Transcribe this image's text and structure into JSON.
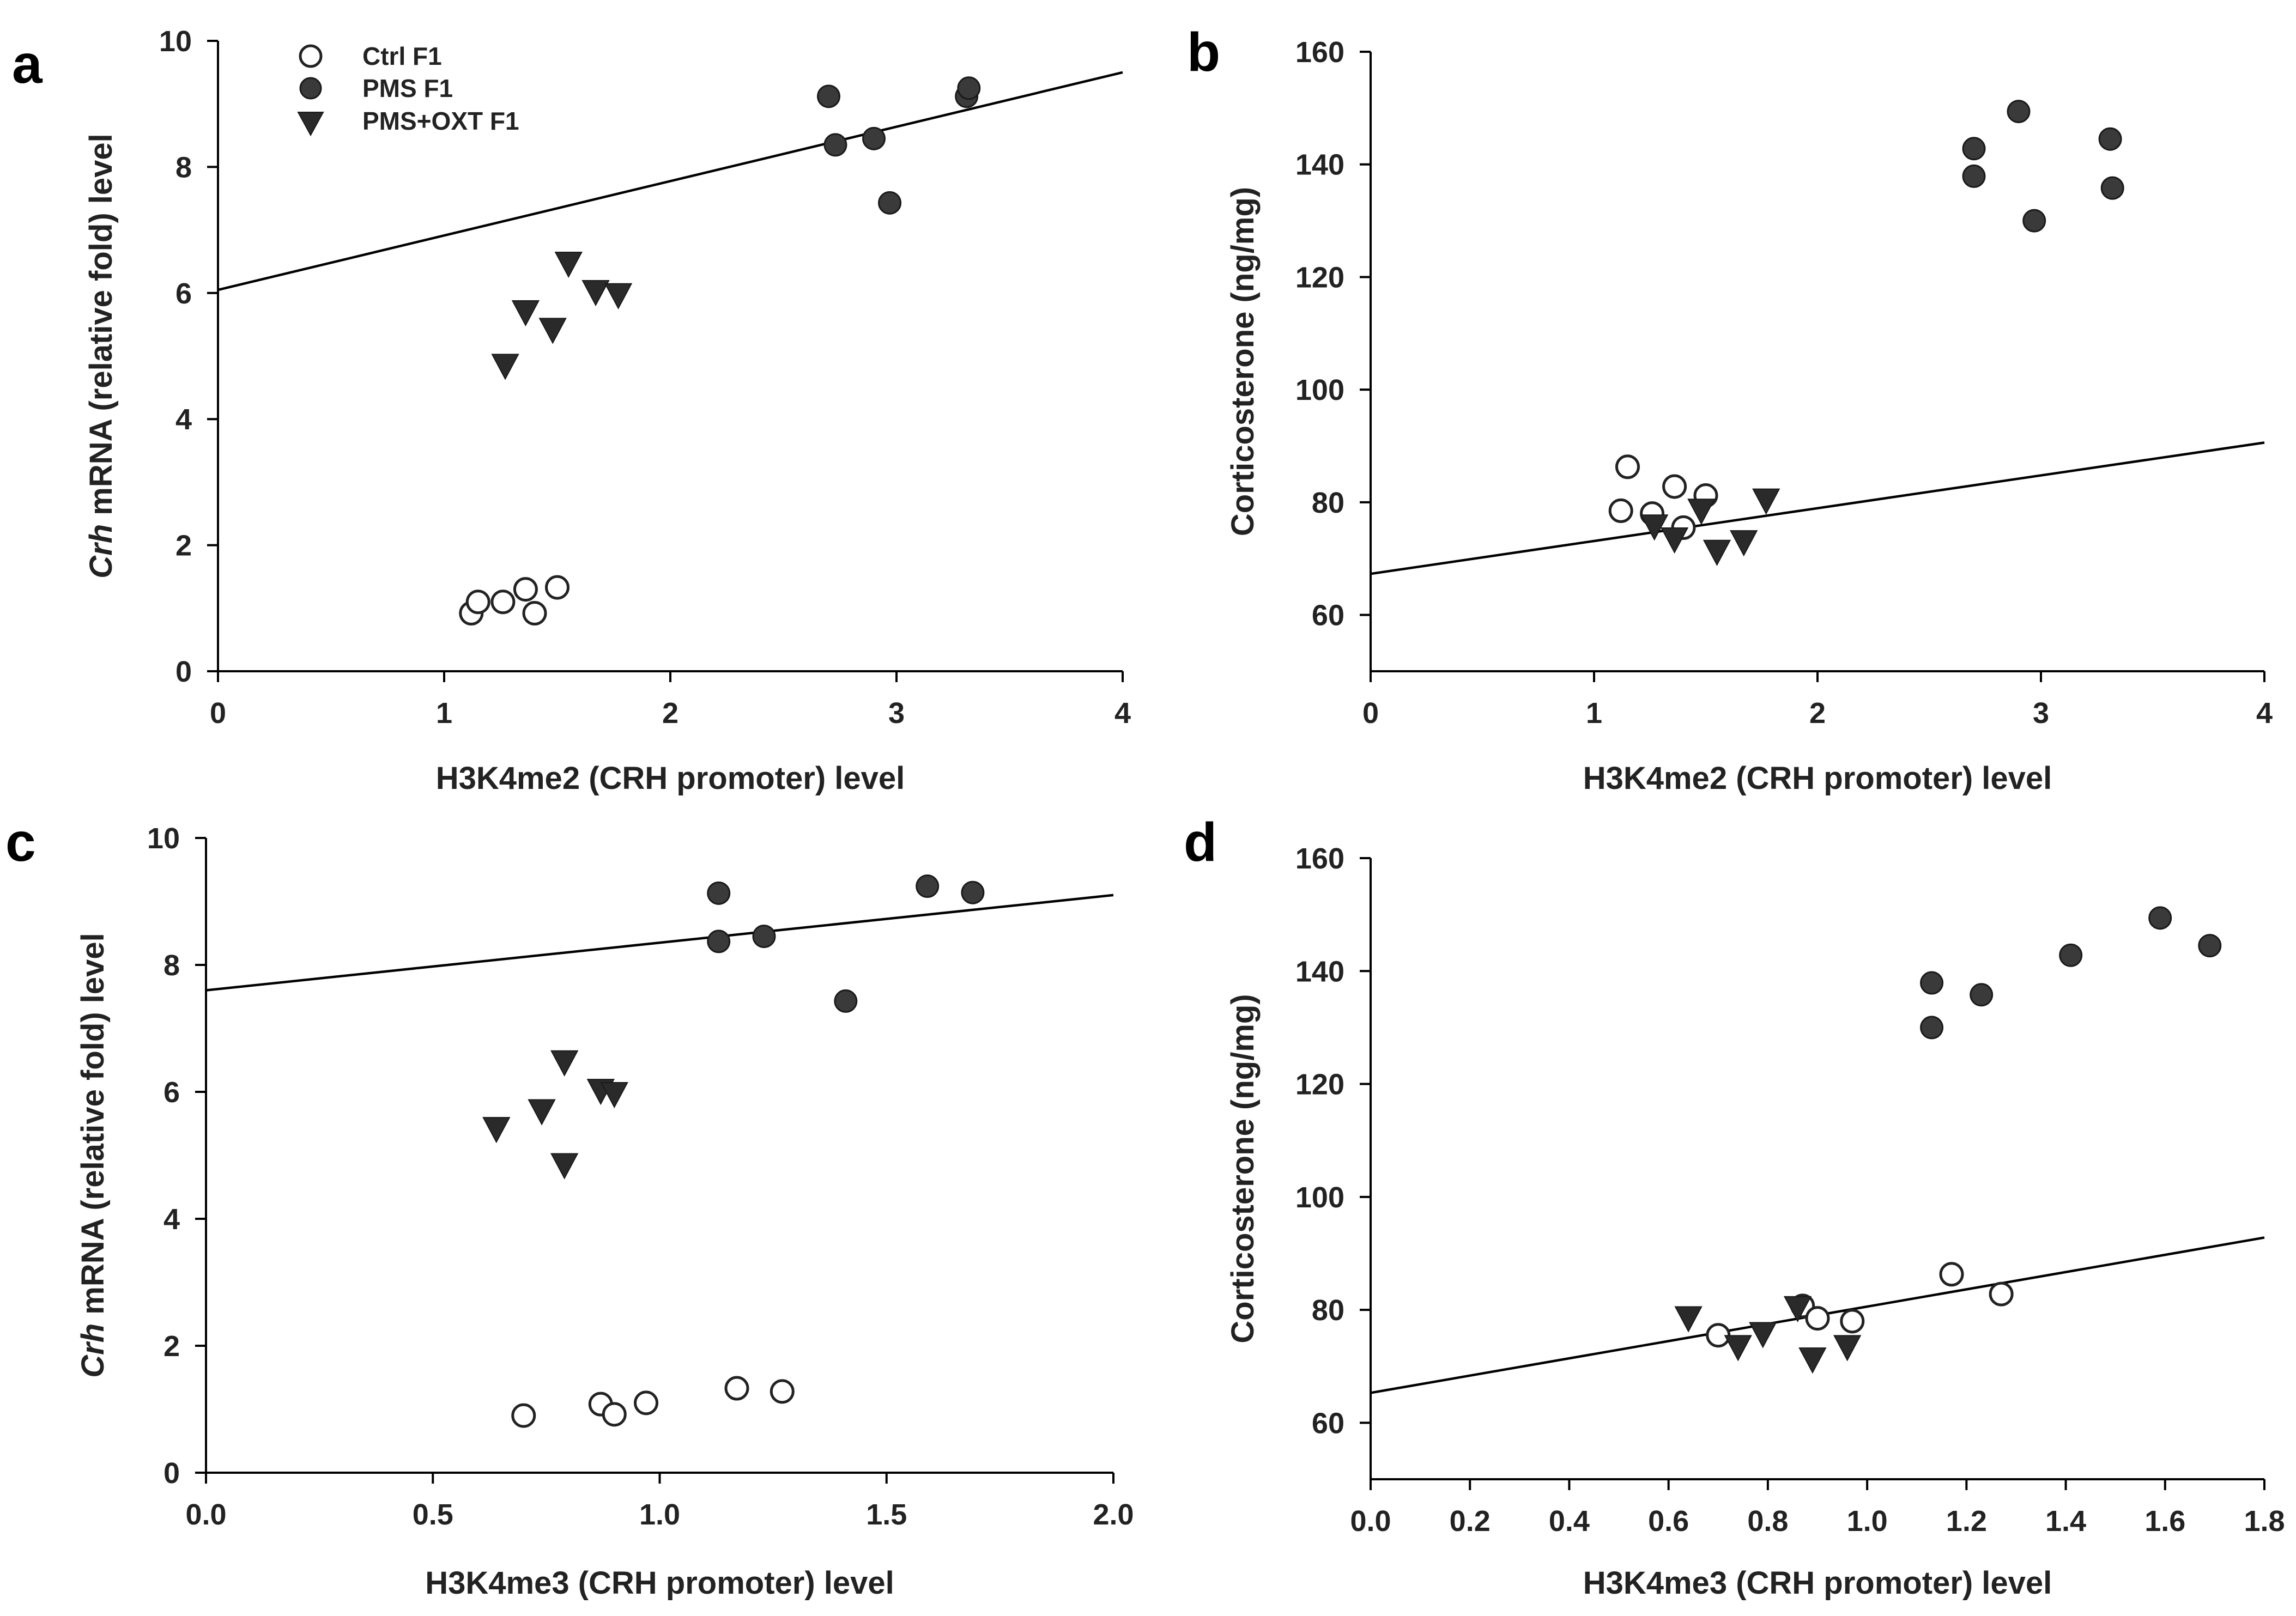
{
  "legend": {
    "ctrl": "Ctrl F1",
    "pms": "PMS F1",
    "oxt": "PMS+OXT F1"
  },
  "chart_data": [
    {
      "panel": "a",
      "type": "scatter",
      "xlabel": "H3K4me2 (CRH promoter) level",
      "ylabel_italic": "Crh",
      "ylabel_rest": " mRNA (relative fold) level",
      "xlim": [
        0,
        4
      ],
      "ylim": [
        0,
        10
      ],
      "xticks": [
        "0",
        "1",
        "2",
        "3",
        "4"
      ],
      "xtick_values": [
        0,
        1,
        2,
        3,
        4
      ],
      "yticks": [
        "0",
        "2",
        "4",
        "6",
        "8",
        "10"
      ],
      "ytick_values": [
        0,
        2,
        4,
        6,
        8,
        10
      ],
      "regression": {
        "x0": 0,
        "y0": 6.05,
        "x1": 4,
        "y1": 9.5
      },
      "series": [
        {
          "name": "Ctrl F1",
          "marker": "open-circle",
          "points": [
            [
              1.12,
              0.92
            ],
            [
              1.15,
              1.1
            ],
            [
              1.26,
              1.1
            ],
            [
              1.36,
              1.3
            ],
            [
              1.4,
              0.92
            ],
            [
              1.5,
              1.33
            ]
          ]
        },
        {
          "name": "PMS F1",
          "marker": "filled-circle",
          "points": [
            [
              2.7,
              9.12
            ],
            [
              2.73,
              8.35
            ],
            [
              2.9,
              8.45
            ],
            [
              2.97,
              7.43
            ],
            [
              3.31,
              9.12
            ],
            [
              3.32,
              9.25
            ]
          ]
        },
        {
          "name": "PMS+OXT F1",
          "marker": "triangle-down",
          "points": [
            [
              1.27,
              4.88
            ],
            [
              1.36,
              5.73
            ],
            [
              1.48,
              5.45
            ],
            [
              1.55,
              6.5
            ],
            [
              1.67,
              6.05
            ],
            [
              1.77,
              6.0
            ]
          ]
        }
      ]
    },
    {
      "panel": "b",
      "type": "scatter",
      "xlabel": "H3K4me2 (CRH promoter) level",
      "ylabel_italic": "",
      "ylabel_rest": "Corticosterone (ng/mg)",
      "xlim": [
        0,
        4
      ],
      "ylim": [
        50,
        160
      ],
      "xticks": [
        "0",
        "1",
        "2",
        "3",
        "4"
      ],
      "xtick_values": [
        0,
        1,
        2,
        3,
        4
      ],
      "yticks": [
        "60",
        "80",
        "100",
        "120",
        "140",
        "160"
      ],
      "ytick_values": [
        60,
        80,
        100,
        120,
        140,
        160
      ],
      "regression": {
        "x0": 0,
        "y0": 67.3,
        "x1": 4,
        "y1": 90.6
      },
      "series": [
        {
          "name": "Ctrl F1",
          "marker": "open-circle",
          "points": [
            [
              1.12,
              78.5
            ],
            [
              1.15,
              86.3
            ],
            [
              1.26,
              78.0
            ],
            [
              1.36,
              82.8
            ],
            [
              1.4,
              75.5
            ],
            [
              1.5,
              81.2
            ]
          ]
        },
        {
          "name": "PMS F1",
          "marker": "filled-circle",
          "points": [
            [
              2.7,
              142.8
            ],
            [
              2.7,
              137.9
            ],
            [
              2.9,
              149.4
            ],
            [
              2.97,
              130.0
            ],
            [
              3.31,
              144.5
            ],
            [
              3.32,
              135.8
            ]
          ]
        },
        {
          "name": "PMS+OXT F1",
          "marker": "triangle-down",
          "points": [
            [
              1.27,
              76.1
            ],
            [
              1.36,
              73.8
            ],
            [
              1.48,
              78.9
            ],
            [
              1.55,
              71.6
            ],
            [
              1.67,
              73.3
            ],
            [
              1.77,
              80.7
            ]
          ]
        }
      ]
    },
    {
      "panel": "c",
      "type": "scatter",
      "xlabel": "H3K4me3 (CRH promoter) level",
      "ylabel_italic": "Crh",
      "ylabel_rest": " mRNA (relative fold) level",
      "xlim": [
        0,
        2
      ],
      "ylim": [
        0,
        10
      ],
      "xticks": [
        "0.0",
        "0.5",
        "1.0",
        "1.5",
        "2.0"
      ],
      "xtick_values": [
        0,
        0.5,
        1,
        1.5,
        2
      ],
      "yticks": [
        "0",
        "2",
        "4",
        "6",
        "8",
        "10"
      ],
      "ytick_values": [
        0,
        2,
        4,
        6,
        8,
        10
      ],
      "regression": {
        "x0": 0,
        "y0": 7.6,
        "x1": 2,
        "y1": 9.1
      },
      "series": [
        {
          "name": "Ctrl F1",
          "marker": "open-circle",
          "points": [
            [
              0.7,
              0.9
            ],
            [
              0.87,
              1.08
            ],
            [
              0.9,
              0.92
            ],
            [
              0.97,
              1.1
            ],
            [
              1.17,
              1.33
            ],
            [
              1.27,
              1.28
            ]
          ]
        },
        {
          "name": "PMS F1",
          "marker": "filled-circle",
          "points": [
            [
              1.13,
              9.13
            ],
            [
              1.13,
              8.37
            ],
            [
              1.23,
              8.45
            ],
            [
              1.41,
              7.43
            ],
            [
              1.59,
              9.24
            ],
            [
              1.69,
              9.14
            ]
          ]
        },
        {
          "name": "PMS+OXT F1",
          "marker": "triangle-down",
          "points": [
            [
              0.64,
              5.45
            ],
            [
              0.74,
              5.73
            ],
            [
              0.79,
              6.5
            ],
            [
              0.79,
              4.88
            ],
            [
              0.87,
              6.05
            ],
            [
              0.9,
              6.0
            ]
          ]
        }
      ]
    },
    {
      "panel": "d",
      "type": "scatter",
      "xlabel": "H3K4me3 (CRH promoter) level",
      "ylabel_italic": "",
      "ylabel_rest": "Corticosterone (ng/mg)",
      "xlim": [
        0,
        1.8
      ],
      "ylim": [
        50,
        160
      ],
      "xticks": [
        "0.0",
        "0.2",
        "0.4",
        "0.6",
        "0.8",
        "1.0",
        "1.2",
        "1.4",
        "1.6",
        "1.8"
      ],
      "xtick_values": [
        0,
        0.2,
        0.4,
        0.6,
        0.8,
        1.0,
        1.2,
        1.4,
        1.6,
        1.8
      ],
      "yticks": [
        "60",
        "80",
        "100",
        "120",
        "140",
        "160"
      ],
      "ytick_values": [
        60,
        80,
        100,
        120,
        140,
        160
      ],
      "regression": {
        "x0": 0,
        "y0": 65.3,
        "x1": 1.8,
        "y1": 92.8
      },
      "series": [
        {
          "name": "Ctrl F1",
          "marker": "open-circle",
          "points": [
            [
              0.7,
              75.5
            ],
            [
              0.87,
              80.7
            ],
            [
              0.9,
              78.5
            ],
            [
              0.97,
              78.0
            ],
            [
              1.17,
              86.3
            ],
            [
              1.27,
              82.8
            ]
          ]
        },
        {
          "name": "PMS F1",
          "marker": "filled-circle",
          "points": [
            [
              1.13,
              137.9
            ],
            [
              1.13,
              130.0
            ],
            [
              1.23,
              135.8
            ],
            [
              1.41,
              142.8
            ],
            [
              1.59,
              149.4
            ],
            [
              1.69,
              144.5
            ]
          ]
        },
        {
          "name": "PMS+OXT F1",
          "marker": "triangle-down",
          "points": [
            [
              0.64,
              78.9
            ],
            [
              0.74,
              73.8
            ],
            [
              0.79,
              76.1
            ],
            [
              0.86,
              80.7
            ],
            [
              0.89,
              71.6
            ],
            [
              0.96,
              73.8
            ]
          ]
        }
      ]
    }
  ]
}
